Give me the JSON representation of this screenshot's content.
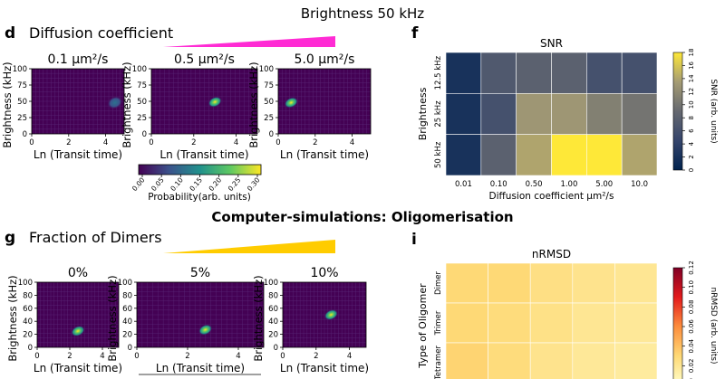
{
  "colors": {
    "magenta": "#ff2bd4",
    "orange": "#ffcc00",
    "viridis_bg": "#440154"
  },
  "header": {
    "title": "Brightness 50 kHz",
    "section_title": "Computer-simulations: Oligomerisation"
  },
  "panel_d": {
    "letter": "d",
    "title": "Diffusion coefficient",
    "colorbar": {
      "label": "Probability(arb. units)",
      "ticks": [
        "0.00",
        "0.05",
        "0.10",
        "0.15",
        "0.20",
        "0.25",
        "0.30"
      ]
    }
  },
  "panel_g": {
    "letter": "g",
    "title": "Fraction of Dimers"
  },
  "panel_f": {
    "letter": "f"
  },
  "panel_i": {
    "letter": "i"
  },
  "chart_data": [
    {
      "id": "d1",
      "type": "heatmap",
      "title": "0.1 μm²/s",
      "xlabel": "Ln (Transit time)",
      "ylabel": "Brightness (kHz)",
      "xlim": [
        0,
        5
      ],
      "ylim": [
        0,
        100
      ],
      "xticks": [
        "0",
        "2",
        "4"
      ],
      "yticks": [
        "0",
        "25",
        "50",
        "75",
        "100"
      ],
      "blob": {
        "x": 4.5,
        "y": 48,
        "intensity": 0.35
      }
    },
    {
      "id": "d2",
      "type": "heatmap",
      "title": "0.5 μm²/s",
      "xlabel": "Ln (Transit time)",
      "ylabel": "Brightness (kHz)",
      "xlim": [
        0,
        5
      ],
      "ylim": [
        0,
        100
      ],
      "xticks": [
        "0",
        "2",
        "4"
      ],
      "yticks": [
        "0",
        "25",
        "50",
        "75",
        "100"
      ],
      "blob": {
        "x": 3.0,
        "y": 49,
        "intensity": 1.0
      }
    },
    {
      "id": "d3",
      "type": "heatmap",
      "title": "5.0 μm²/s",
      "xlabel": "Ln (Transit time)",
      "ylabel": "Brightness (kHz)",
      "xlim": [
        0,
        5
      ],
      "ylim": [
        0,
        100
      ],
      "xticks": [
        "0",
        "2",
        "4"
      ],
      "yticks": [
        "0",
        "25",
        "50",
        "75",
        "100"
      ],
      "blob": {
        "x": 0.7,
        "y": 48,
        "intensity": 1.0
      }
    },
    {
      "id": "g1",
      "type": "heatmap",
      "title": "0%",
      "xlabel": "Ln (Transit time)",
      "ylabel": "Brightness (kHz)",
      "xlim": [
        0,
        5
      ],
      "ylim": [
        0,
        100
      ],
      "xticks": [
        "0",
        "2",
        "4"
      ],
      "yticks": [
        "0",
        "20",
        "40",
        "60",
        "80",
        "100"
      ],
      "blob": {
        "x": 2.5,
        "y": 25,
        "intensity": 1.0
      }
    },
    {
      "id": "g2",
      "type": "heatmap",
      "title": "5%",
      "xlabel": "Ln (Transit time)",
      "ylabel": "Brightness (kHz)",
      "xlim": [
        0,
        5
      ],
      "ylim": [
        0,
        100
      ],
      "xticks": [
        "0",
        "2",
        "4"
      ],
      "yticks": [
        "0",
        "20",
        "40",
        "60",
        "80",
        "100"
      ],
      "blob": {
        "x": 2.7,
        "y": 27,
        "intensity": 1.0
      }
    },
    {
      "id": "g3",
      "type": "heatmap",
      "title": "10%",
      "xlabel": "Ln (Transit time)",
      "ylabel": "Brightness (kHz)",
      "xlim": [
        0,
        5
      ],
      "ylim": [
        0,
        100
      ],
      "xticks": [
        "0",
        "2",
        "4"
      ],
      "yticks": [
        "0",
        "20",
        "40",
        "60",
        "80",
        "100"
      ],
      "blob": {
        "x": 2.9,
        "y": 50,
        "intensity": 0.95
      }
    },
    {
      "id": "f",
      "type": "heatmap",
      "title": "SNR",
      "xlabel": "Diffusion coefficient μm²/s",
      "ylabel": "Brightness",
      "columns": [
        "0.01",
        "0.10",
        "0.50",
        "1.00",
        "5.00",
        "10.0"
      ],
      "rows": [
        "12.5 kHz",
        "25 kHz",
        "50 kHz"
      ],
      "values": [
        [
          2,
          7,
          8,
          8,
          6,
          6
        ],
        [
          2,
          6,
          13,
          13,
          11,
          10
        ],
        [
          2,
          8,
          14,
          18,
          18,
          14
        ]
      ],
      "colorbar": {
        "label": "SNR (arb. units)",
        "ticks": [
          "0",
          "2",
          "4",
          "6",
          "8",
          "10",
          "12",
          "14",
          "16",
          "18"
        ],
        "range": [
          0,
          18
        ]
      }
    },
    {
      "id": "i",
      "type": "heatmap",
      "title": "nRMSD",
      "xlabel": "",
      "ylabel": "Type of Oligomer",
      "rows": [
        "Dimer",
        "Trimer",
        "Tetramer"
      ],
      "values": [
        [
          0.03,
          0.03,
          0.025,
          0.022,
          0.02
        ],
        [
          0.03,
          0.028,
          0.024,
          0.02,
          0.018
        ],
        [
          0.032,
          0.028,
          0.022,
          0.018,
          0.016
        ]
      ],
      "colorbar": {
        "label": "nRMSD (arb. units)",
        "ticks": [
          "0.00",
          "0.02",
          "0.04",
          "0.06",
          "0.08",
          "0.10",
          "0.12"
        ],
        "range": [
          0,
          0.12
        ]
      }
    }
  ]
}
